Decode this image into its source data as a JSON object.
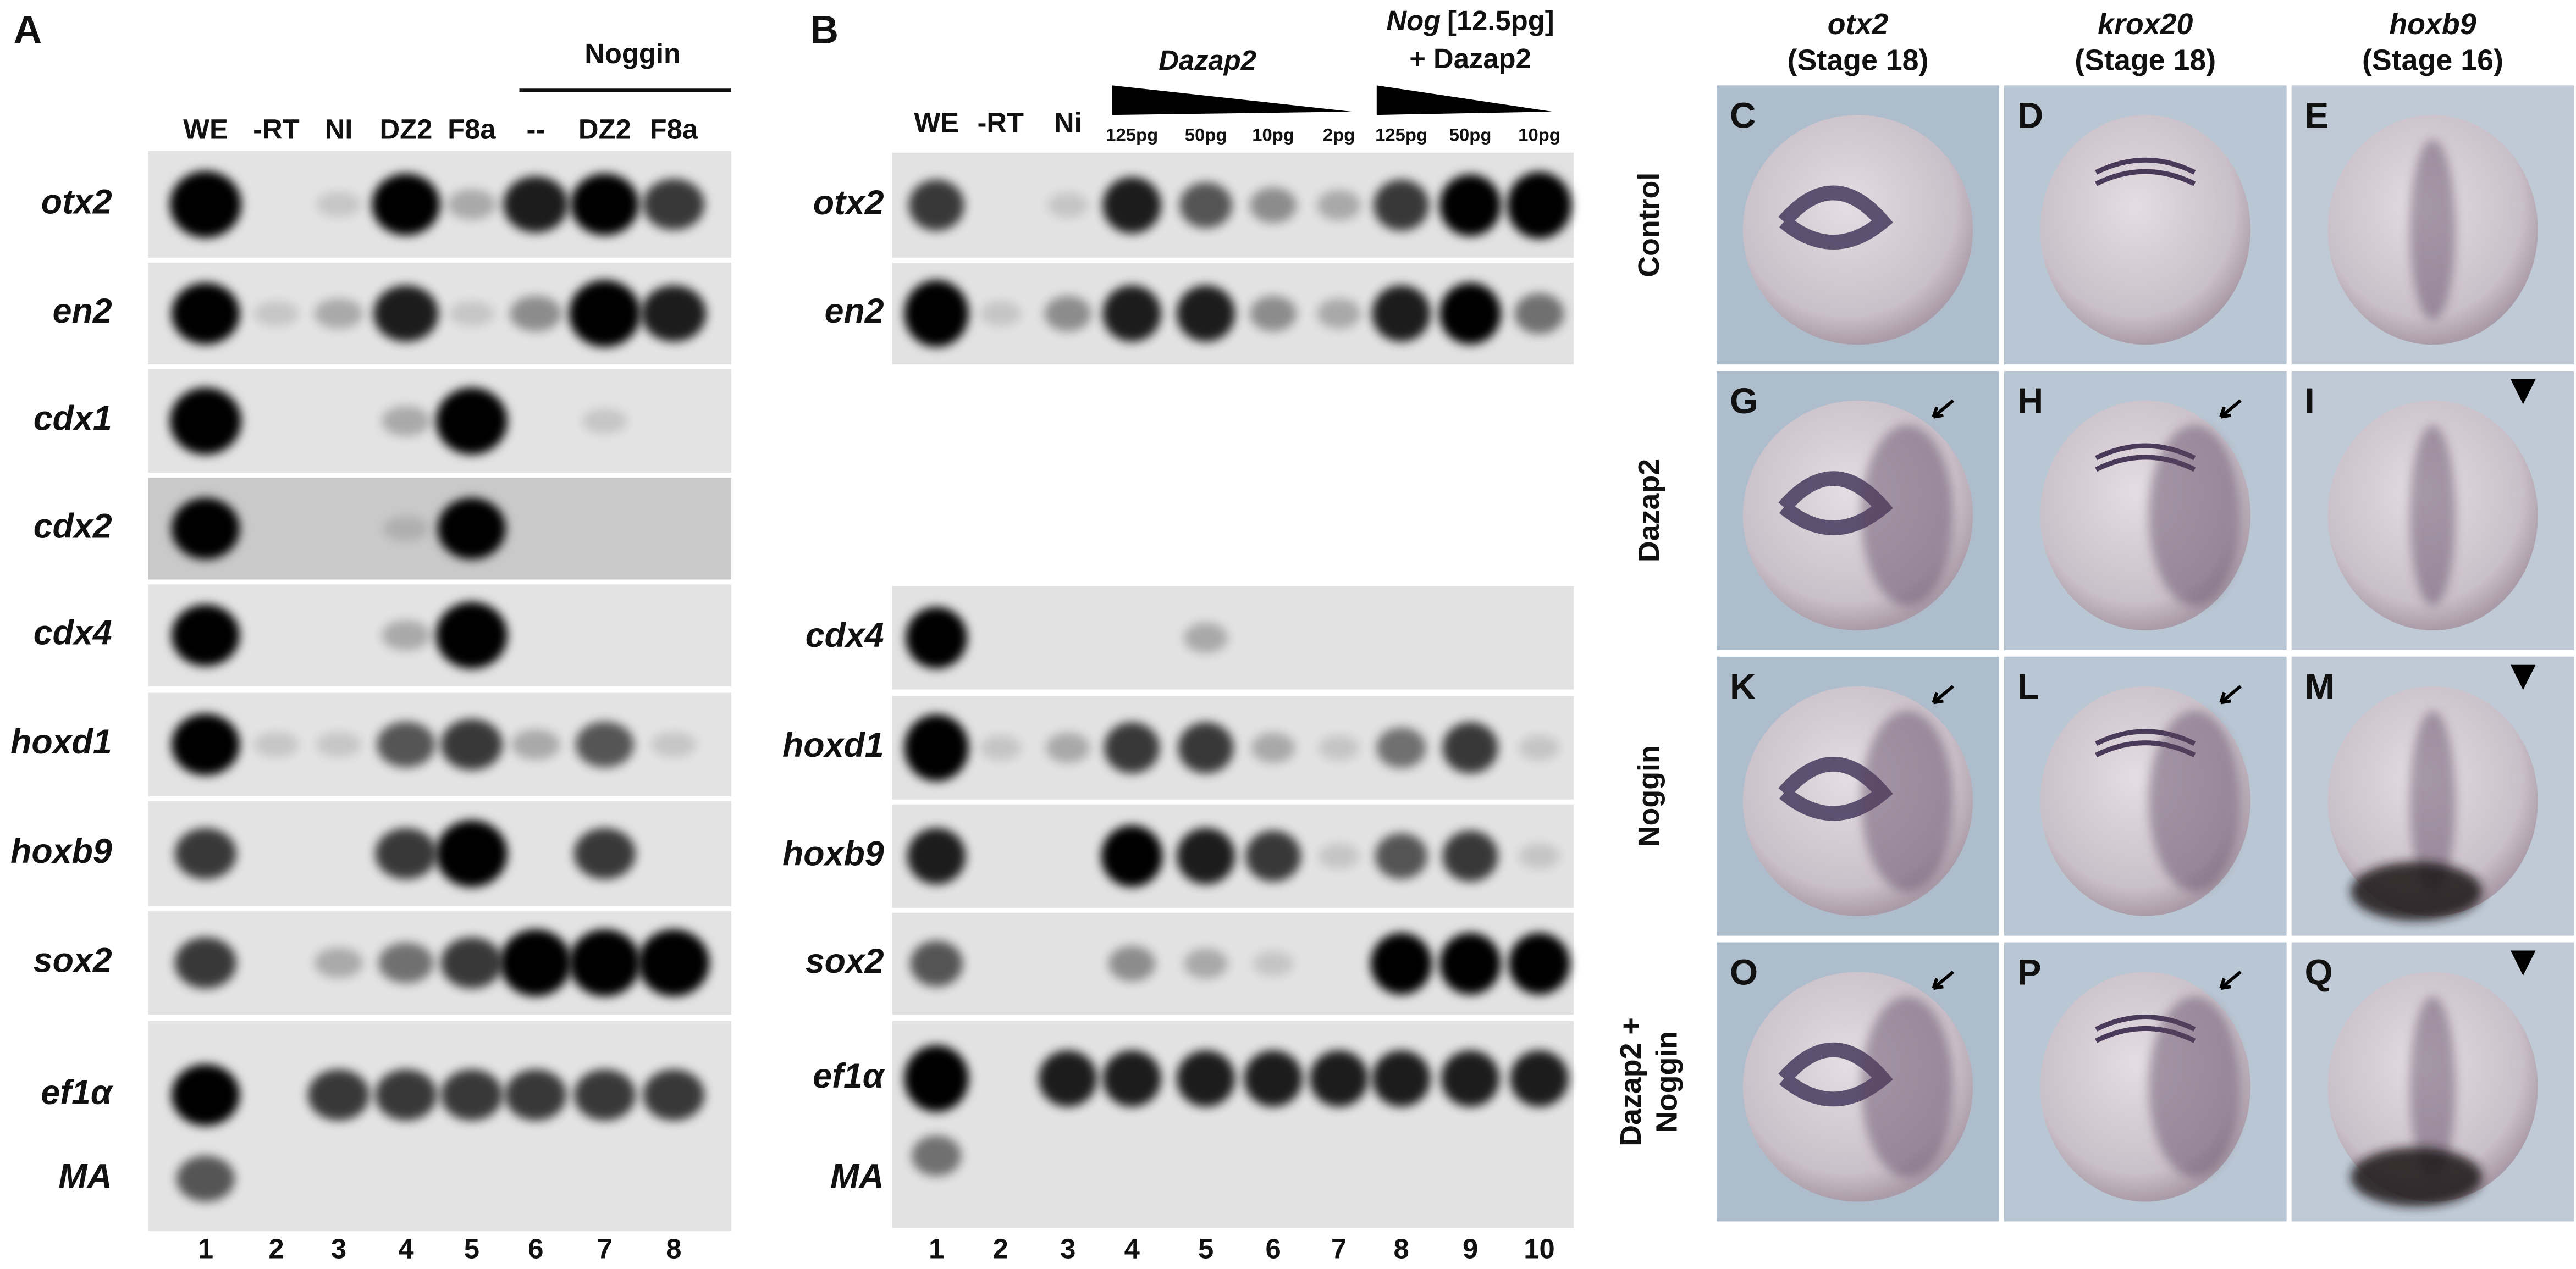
{
  "panel_a": {
    "label": "A",
    "group_label": "Noggin",
    "lanes": [
      "WE",
      "-RT",
      "NI",
      "DZ2",
      "F8a",
      "--",
      "DZ2",
      "F8a"
    ],
    "genes": [
      "otx2",
      "en2",
      "cdx1",
      "cdx2",
      "cdx4",
      "hoxd1",
      "hoxb9",
      "sox2",
      "ef1α",
      "MA"
    ],
    "lane_numbers": [
      "1",
      "2",
      "3",
      "4",
      "5",
      "6",
      "7",
      "8"
    ]
  },
  "panel_b": {
    "label": "B",
    "lanes": [
      "WE",
      "-RT",
      "Ni"
    ],
    "dazap2_label": "Dazap2",
    "dose_labels": [
      "125pg",
      "50pg",
      "10pg",
      "2pg",
      "125pg",
      "50pg",
      "10pg"
    ],
    "nog_label": "Nog",
    "nog_dose": "[12.5pg]",
    "nog_label2": "+ Dazap2",
    "genes": [
      "otx2",
      "en2",
      "cdx4",
      "hoxd1",
      "hoxb9",
      "sox2",
      "ef1α",
      "MA"
    ],
    "lane_numbers": [
      "1",
      "2",
      "3",
      "4",
      "5",
      "6",
      "7",
      "8",
      "9",
      "10"
    ]
  },
  "panel_c": {
    "columns": [
      {
        "gene": "otx2",
        "stage": "(Stage 18)"
      },
      {
        "gene": "krox20",
        "stage": "(Stage 18)"
      },
      {
        "gene": "hoxb9",
        "stage": "(Stage 16)"
      }
    ],
    "rows": [
      [
        "Control"
      ],
      [
        "Dazap2"
      ],
      [
        "Noggin"
      ],
      [
        "Dazap2 +",
        "Noggin"
      ]
    ],
    "panel_letters": [
      [
        "C",
        "D",
        "E"
      ],
      [
        "G",
        "H",
        "I"
      ],
      [
        "K",
        "L",
        "M"
      ],
      [
        "O",
        "P",
        "Q"
      ]
    ]
  }
}
